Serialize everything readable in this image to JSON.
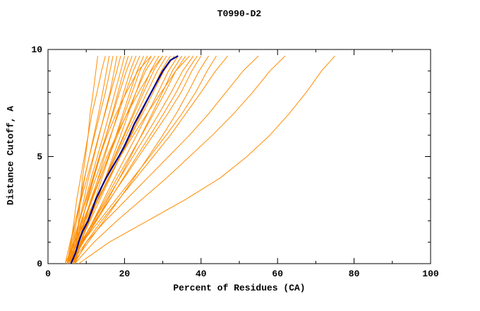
{
  "title": "T0990-D2",
  "colors": {
    "model_line": "#ff8c00",
    "highlight_line": "#00008b",
    "axis": "#000000",
    "background": "#ffffff"
  },
  "axes": {
    "x": {
      "label": "Percent of Residues (CA)",
      "min": 0,
      "max": 100,
      "major_ticks": [
        0,
        20,
        40,
        60,
        80,
        100
      ],
      "minor_ticks": [
        10,
        30,
        50,
        70,
        90
      ]
    },
    "y": {
      "label": "Distance Cutoff, A",
      "min": 0,
      "max": 10,
      "major_ticks": [
        0,
        5,
        10
      ],
      "minor_ticks": [
        1,
        2,
        3,
        4,
        6,
        7,
        8,
        9
      ]
    }
  },
  "chart_data": {
    "type": "line",
    "title": "T0990-D2",
    "xlabel": "Percent of Residues (CA)",
    "ylabel": "Distance Cutoff, A",
    "xlim": [
      0,
      100
    ],
    "ylim": [
      0,
      10
    ],
    "grid": false,
    "legend": "none",
    "description": "Cumulative percent of CA residues (x) under each distance cutoff in Angstroms (y); many orange model curves with one dark-blue highlighted curve",
    "y_samples": [
      0,
      1,
      2,
      3,
      4,
      5,
      6,
      7,
      8,
      9,
      9.7
    ],
    "model_curves_x": [
      [
        7,
        7.5,
        8,
        8.5,
        9,
        9.8,
        10.5,
        11,
        11.8,
        12.5,
        13
      ],
      [
        5,
        6,
        6.8,
        7.5,
        8.5,
        9.5,
        10.5,
        11.5,
        12.8,
        14,
        15
      ],
      [
        6,
        6.5,
        7.5,
        8.6,
        9.6,
        10.8,
        12,
        13.2,
        14.3,
        15.3,
        16
      ],
      [
        5,
        6.2,
        7.2,
        8.4,
        9.5,
        10.8,
        12.2,
        13.6,
        15,
        16.2,
        17
      ],
      [
        6,
        7,
        8.2,
        9.4,
        10.6,
        12,
        13.4,
        14.8,
        16.2,
        17.3,
        18
      ],
      [
        4.5,
        5.8,
        7.2,
        8.7,
        10.2,
        11.8,
        13.3,
        14.9,
        16.4,
        18,
        19
      ],
      [
        5.5,
        6.8,
        8.3,
        9.8,
        11.3,
        12.9,
        14.5,
        16,
        17.5,
        19,
        20
      ],
      [
        6,
        7.3,
        8.8,
        10.4,
        12,
        13.6,
        15.2,
        16.8,
        18.3,
        19.8,
        21
      ],
      [
        5,
        6.5,
        8.2,
        10,
        11.7,
        13.4,
        15.2,
        17,
        18.7,
        20.5,
        22
      ],
      [
        6.5,
        8,
        9.7,
        11.4,
        13.1,
        14.8,
        16.5,
        18.2,
        19.8,
        21.5,
        23
      ],
      [
        5,
        6.8,
        8.7,
        10.6,
        12.5,
        14.5,
        16.4,
        18.4,
        20.3,
        22.3,
        24
      ],
      [
        7,
        8.7,
        10.5,
        12.3,
        14.1,
        16,
        17.8,
        19.6,
        21.4,
        23.3,
        25
      ],
      [
        5.5,
        7.4,
        9.5,
        11.6,
        13.7,
        15.8,
        17.9,
        20,
        22,
        24,
        26
      ],
      [
        6,
        8.5,
        10.8,
        13,
        15,
        17,
        19,
        21,
        23,
        25,
        27
      ],
      [
        7,
        7.8,
        9,
        10.3,
        11.8,
        13.5,
        15.5,
        17.8,
        20.5,
        23.5,
        27
      ],
      [
        5,
        7,
        9.2,
        11.4,
        13.6,
        15.9,
        18.2,
        20.6,
        23,
        25.5,
        28
      ],
      [
        6,
        8.1,
        10.4,
        12.7,
        15,
        17.4,
        19.8,
        22.2,
        24.5,
        26.8,
        29
      ],
      [
        5.5,
        7.7,
        10.1,
        12.5,
        15,
        17.5,
        20,
        22.5,
        25,
        27.6,
        30
      ],
      [
        7,
        8,
        9.5,
        11.2,
        13.2,
        15.4,
        17.9,
        20.7,
        23.7,
        27,
        30
      ],
      [
        4.5,
        7,
        9.7,
        12.4,
        15.1,
        17.8,
        20.5,
        23.2,
        25.9,
        28.6,
        31
      ],
      [
        6,
        8.4,
        11,
        13.6,
        16.2,
        18.9,
        21.6,
        24.3,
        27,
        29.6,
        32
      ],
      [
        5,
        7.6,
        10.4,
        13.2,
        16,
        18.9,
        21.8,
        24.7,
        27.5,
        30.3,
        33
      ],
      [
        6.5,
        9,
        11.8,
        14.6,
        17.4,
        20.3,
        23.2,
        26,
        28.8,
        31.5,
        34
      ],
      [
        5,
        9,
        12.5,
        15.7,
        18.7,
        21.6,
        24.4,
        27.2,
        29.9,
        32.5,
        35
      ],
      [
        6,
        8.8,
        11.9,
        15,
        18.1,
        21.3,
        24.5,
        27.6,
        30.6,
        33.4,
        36
      ],
      [
        7,
        8.5,
        10.5,
        13,
        15.8,
        18.9,
        22.3,
        25.9,
        29.6,
        33.4,
        37
      ],
      [
        5.5,
        8.6,
        12,
        15.4,
        18.8,
        22.2,
        25.6,
        29,
        32.2,
        35.2,
        38
      ],
      [
        6,
        9.2,
        12.7,
        16.2,
        19.7,
        23.2,
        26.7,
        30.2,
        33.5,
        36.4,
        39
      ],
      [
        5,
        8.5,
        12.3,
        16.1,
        19.9,
        23.7,
        27.5,
        31.3,
        34.8,
        37.6,
        40
      ],
      [
        6.5,
        10.5,
        14.6,
        18.6,
        22.5,
        26.3,
        30,
        33.5,
        36.6,
        39.5,
        42
      ],
      [
        5,
        9,
        13.4,
        17.8,
        22.2,
        26.6,
        30.9,
        35,
        38.6,
        41.6,
        44
      ],
      [
        7,
        10,
        14,
        18.5,
        23,
        27.5,
        32,
        36,
        40,
        43.8,
        47
      ],
      [
        6,
        10,
        15,
        20.5,
        26,
        31.5,
        37,
        42,
        46.5,
        51,
        55
      ],
      [
        7,
        12,
        18,
        24.5,
        31,
        37,
        43,
        48.5,
        53.5,
        58,
        62
      ],
      [
        8,
        16,
        26,
        36,
        45,
        52,
        58,
        63,
        67.5,
        71.5,
        75
      ]
    ],
    "highlight_curve": {
      "y": [
        0,
        0.5,
        1,
        1.5,
        2,
        2.5,
        3,
        3.5,
        4,
        4.5,
        5,
        5.5,
        6,
        6.5,
        7,
        7.5,
        8,
        8.5,
        9,
        9.5,
        9.7
      ],
      "x": [
        6,
        7.2,
        8,
        9,
        10.5,
        11.5,
        12.5,
        13.8,
        15.2,
        16.8,
        18.5,
        20,
        21.3,
        22.5,
        24,
        25.5,
        27,
        28.5,
        30,
        32,
        34
      ]
    }
  }
}
